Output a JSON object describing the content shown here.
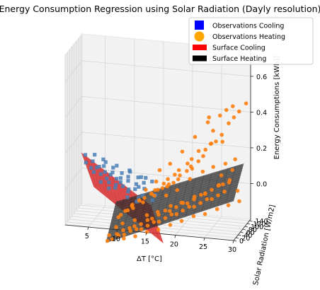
{
  "chart_data": {
    "type": "scatter",
    "projection": "3d",
    "title": "Energy Consumption Regression using Solar Radiation (Dayly resolution)",
    "xlabel": "ΔT [°C]",
    "ylabel": "Solar Radiation [W/m2]",
    "zlabel": "Energy Consumptions [kWh]]",
    "x_ticks": [
      "5",
      "10",
      "15",
      "20",
      "25",
      "30"
    ],
    "y_ticks": [
      "0",
      "20",
      "40",
      "60",
      "80",
      "100",
      "120",
      "140"
    ],
    "z_ticks": [
      "0.0",
      "0.2",
      "0.4",
      "0.6"
    ],
    "xlim": [
      1,
      30
    ],
    "ylim": [
      0,
      150
    ],
    "zlim": [
      -0.2,
      0.75
    ],
    "grid": true,
    "legend_position": "top-right",
    "legend": [
      {
        "label": "Observations Cooling",
        "color": "#0000ff",
        "marker": "square"
      },
      {
        "label": "Observations Heating",
        "color": "#ffa500",
        "marker": "circle"
      },
      {
        "label": "Surface Cooling",
        "color": "#ff0000",
        "marker": "rect"
      },
      {
        "label": "Surface Heating",
        "color": "#000000",
        "marker": "rect"
      }
    ],
    "surfaces": [
      {
        "name": "Surface Cooling",
        "color": "#dd3333",
        "corners": [
          [
            3,
            40,
            0.18
          ],
          [
            15,
            40,
            -0.08
          ],
          [
            15,
            150,
            -0.38
          ],
          [
            3,
            150,
            -0.1
          ]
        ]
      },
      {
        "name": "Surface Heating",
        "color": "#333333",
        "corners": [
          [
            8,
            0,
            -0.28
          ],
          [
            30,
            0,
            0.02
          ],
          [
            30,
            90,
            0.16
          ],
          [
            8,
            90,
            -0.12
          ]
        ]
      }
    ],
    "series": [
      {
        "name": "Observations Cooling",
        "color": "#4a7fb5",
        "marker": "square",
        "points": [
          [
            3.2,
            70,
            0.1
          ],
          [
            3.8,
            85,
            0.06
          ],
          [
            4.1,
            95,
            0.03
          ],
          [
            4.6,
            60,
            0.12
          ],
          [
            5.0,
            110,
            0.01
          ],
          [
            5.4,
            75,
            0.08
          ],
          [
            5.8,
            120,
            -0.02
          ],
          [
            6.1,
            90,
            0.04
          ],
          [
            6.5,
            55,
            0.14
          ],
          [
            6.9,
            100,
            0.02
          ],
          [
            7.2,
            130,
            -0.06
          ],
          [
            7.6,
            80,
            0.05
          ],
          [
            8.0,
            65,
            0.09
          ],
          [
            8.3,
            115,
            -0.03
          ],
          [
            8.7,
            95,
            0.01
          ],
          [
            9.1,
            140,
            -0.1
          ],
          [
            9.4,
            70,
            0.06
          ],
          [
            9.8,
            105,
            -0.01
          ],
          [
            10.2,
            85,
            0.03
          ],
          [
            10.6,
            125,
            -0.07
          ],
          [
            11.0,
            60,
            0.08
          ],
          [
            11.3,
            100,
            -0.02
          ],
          [
            11.7,
            135,
            -0.11
          ],
          [
            12.1,
            75,
            0.04
          ],
          [
            12.5,
            110,
            -0.05
          ],
          [
            12.8,
            90,
            0.0
          ],
          [
            13.2,
            145,
            -0.14
          ],
          [
            13.6,
            65,
            0.05
          ],
          [
            14.0,
            120,
            -0.09
          ],
          [
            14.4,
            80,
            0.02
          ],
          [
            4.4,
            140,
            -0.06
          ],
          [
            5.6,
            150,
            -0.1
          ],
          [
            6.8,
            145,
            -0.09
          ],
          [
            8.8,
            150,
            -0.14
          ],
          [
            10.4,
            150,
            -0.16
          ],
          [
            3.5,
            50,
            0.16
          ],
          [
            5.2,
            45,
            0.17
          ],
          [
            7.0,
            50,
            0.13
          ],
          [
            9.0,
            45,
            0.12
          ],
          [
            11.2,
            45,
            0.1
          ],
          [
            6.3,
            70,
            0.09
          ],
          [
            7.9,
            100,
            0.0
          ],
          [
            9.6,
            120,
            -0.07
          ],
          [
            11.8,
            95,
            -0.03
          ],
          [
            13.0,
            55,
            0.06
          ],
          [
            14.6,
            100,
            -0.07
          ],
          [
            4.9,
            80,
            0.07
          ],
          [
            6.0,
            130,
            -0.05
          ],
          [
            8.5,
            125,
            -0.06
          ],
          [
            10.9,
            140,
            -0.13
          ]
        ]
      },
      {
        "name": "Observations Heating",
        "color": "#ff7f0e",
        "marker": "circle",
        "points": [
          [
            9,
            5,
            -0.26
          ],
          [
            10,
            10,
            -0.24
          ],
          [
            11,
            8,
            -0.23
          ],
          [
            12,
            12,
            -0.21
          ],
          [
            13,
            15,
            -0.2
          ],
          [
            14,
            6,
            -0.19
          ],
          [
            15,
            10,
            -0.17
          ],
          [
            16,
            14,
            -0.15
          ],
          [
            17,
            8,
            -0.14
          ],
          [
            18,
            12,
            -0.12
          ],
          [
            19,
            16,
            -0.1
          ],
          [
            20,
            9,
            -0.09
          ],
          [
            21,
            13,
            -0.07
          ],
          [
            22,
            18,
            -0.05
          ],
          [
            23,
            10,
            -0.04
          ],
          [
            24,
            15,
            -0.02
          ],
          [
            25,
            20,
            0.0
          ],
          [
            26,
            12,
            0.01
          ],
          [
            27,
            17,
            0.03
          ],
          [
            28,
            22,
            0.05
          ],
          [
            9.5,
            20,
            -0.24
          ],
          [
            10.5,
            25,
            -0.22
          ],
          [
            11.5,
            30,
            -0.21
          ],
          [
            12.5,
            22,
            -0.19
          ],
          [
            13.5,
            28,
            -0.18
          ],
          [
            14.5,
            35,
            -0.16
          ],
          [
            15.5,
            24,
            -0.14
          ],
          [
            16.5,
            30,
            -0.12
          ],
          [
            17.5,
            38,
            -0.1
          ],
          [
            18.5,
            26,
            -0.09
          ],
          [
            19.5,
            32,
            -0.07
          ],
          [
            20.5,
            40,
            -0.05
          ],
          [
            21.5,
            28,
            -0.04
          ],
          [
            22.5,
            35,
            -0.02
          ],
          [
            23.5,
            45,
            0.0
          ],
          [
            24.5,
            30,
            0.02
          ],
          [
            25.5,
            38,
            0.04
          ],
          [
            26.5,
            50,
            0.06
          ],
          [
            27.5,
            34,
            0.08
          ],
          [
            28.5,
            42,
            0.1
          ],
          [
            10,
            45,
            -0.2
          ],
          [
            12,
            50,
            -0.18
          ],
          [
            14,
            55,
            -0.15
          ],
          [
            16,
            48,
            -0.12
          ],
          [
            18,
            60,
            -0.09
          ],
          [
            20,
            52,
            -0.06
          ],
          [
            22,
            65,
            -0.03
          ],
          [
            24,
            58,
            0.0
          ],
          [
            26,
            70,
            0.04
          ],
          [
            28,
            62,
            0.07
          ],
          [
            11,
            5,
            -0.25
          ],
          [
            13,
            3,
            -0.23
          ],
          [
            15,
            4,
            -0.2
          ],
          [
            17,
            2,
            -0.18
          ],
          [
            19,
            5,
            -0.15
          ],
          [
            21,
            3,
            -0.12
          ],
          [
            23,
            6,
            -0.09
          ],
          [
            25,
            4,
            -0.07
          ],
          [
            27,
            8,
            -0.04
          ],
          [
            29,
            5,
            -0.01
          ],
          [
            15,
            70,
            -0.05
          ],
          [
            17,
            80,
            0.0
          ],
          [
            19,
            75,
            0.05
          ],
          [
            21,
            85,
            0.12
          ],
          [
            23,
            90,
            0.18
          ],
          [
            20,
            60,
            0.22
          ],
          [
            22,
            70,
            0.3
          ],
          [
            24,
            80,
            0.38
          ],
          [
            18,
            55,
            0.15
          ],
          [
            16,
            65,
            0.1
          ],
          [
            25,
            75,
            0.34
          ],
          [
            26,
            85,
            0.42
          ],
          [
            27,
            90,
            0.45
          ],
          [
            28,
            95,
            0.47
          ],
          [
            24,
            90,
            0.4
          ],
          [
            14,
            20,
            -0.05
          ],
          [
            16,
            25,
            0.02
          ],
          [
            18,
            35,
            0.08
          ],
          [
            20,
            30,
            0.14
          ],
          [
            22,
            40,
            0.2
          ],
          [
            12,
            35,
            -0.1
          ],
          [
            13,
            40,
            -0.06
          ],
          [
            15,
            45,
            -0.02
          ],
          [
            17,
            50,
            0.04
          ],
          [
            19,
            45,
            0.1
          ],
          [
            21,
            55,
            0.16
          ],
          [
            23,
            50,
            0.24
          ],
          [
            25,
            60,
            0.28
          ],
          [
            27,
            55,
            0.3
          ],
          [
            29,
            65,
            0.2
          ],
          [
            10,
            30,
            -0.14
          ],
          [
            11,
            40,
            -0.12
          ],
          [
            12,
            25,
            -0.08
          ],
          [
            14,
            45,
            0.0
          ],
          [
            16,
            35,
            0.06
          ],
          [
            18,
            20,
            0.0
          ],
          [
            20,
            15,
            0.04
          ],
          [
            22,
            25,
            0.1
          ],
          [
            24,
            35,
            0.14
          ],
          [
            26,
            25,
            0.18
          ],
          [
            28,
            30,
            0.2
          ],
          [
            29,
            40,
            0.16
          ],
          [
            30,
            35,
            0.05
          ],
          [
            30,
            50,
            -0.02
          ],
          [
            27,
            45,
            0.12
          ],
          [
            9,
            40,
            -0.22
          ],
          [
            8,
            30,
            -0.26
          ],
          [
            8,
            15,
            -0.28
          ],
          [
            9,
            60,
            -0.18
          ],
          [
            10,
            70,
            -0.15
          ],
          [
            11,
            80,
            -0.12
          ],
          [
            12,
            90,
            -0.1
          ],
          [
            13,
            85,
            -0.08
          ],
          [
            14,
            95,
            -0.06
          ],
          [
            15,
            100,
            -0.04
          ],
          [
            16,
            90,
            -0.02
          ],
          [
            17,
            95,
            0.0
          ],
          [
            18,
            85,
            0.02
          ],
          [
            19,
            90,
            0.06
          ],
          [
            20,
            100,
            0.08
          ],
          [
            21,
            95,
            0.1
          ],
          [
            22,
            100,
            0.14
          ],
          [
            23,
            110,
            0.2
          ],
          [
            24,
            105,
            0.24
          ],
          [
            25,
            100,
            0.26
          ],
          [
            26,
            100,
            0.3
          ],
          [
            27,
            110,
            0.36
          ],
          [
            28,
            105,
            0.4
          ],
          [
            29,
            100,
            0.44
          ],
          [
            30,
            110,
            0.48
          ]
        ]
      }
    ]
  }
}
